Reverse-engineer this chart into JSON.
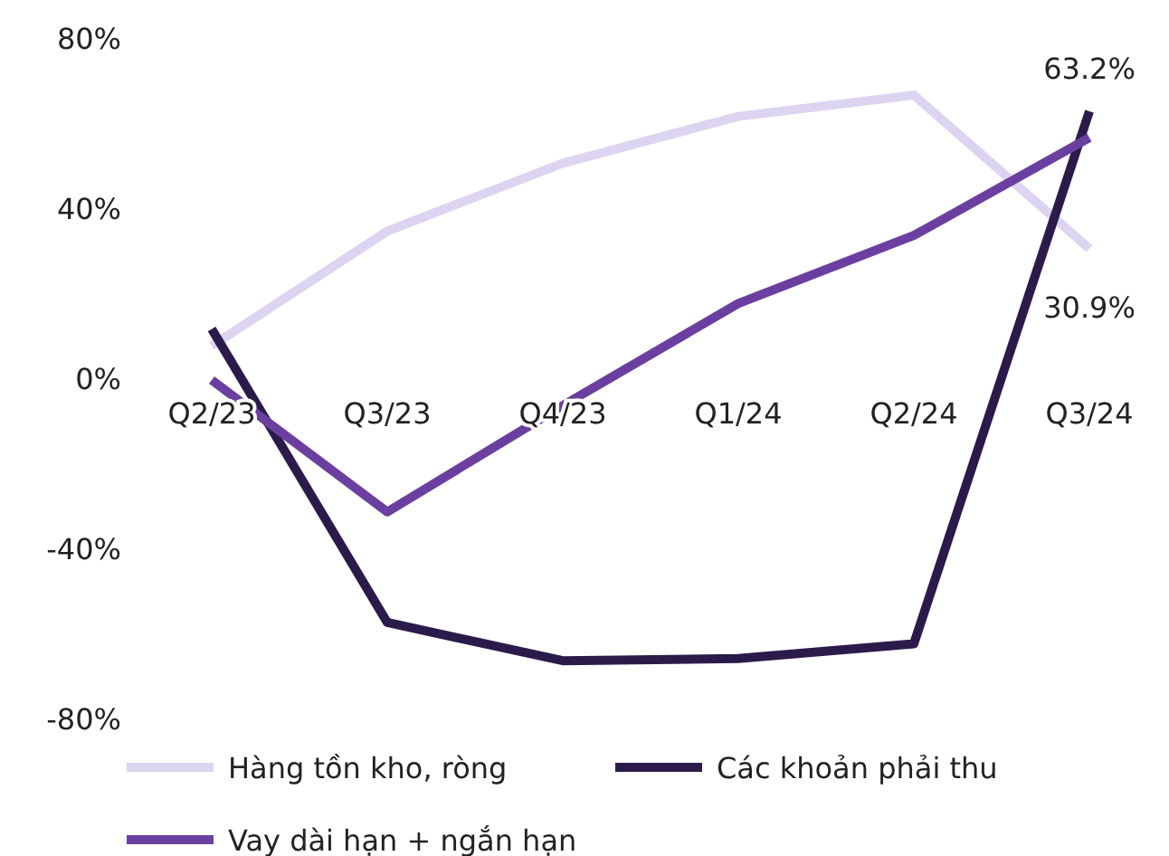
{
  "chart_data": {
    "type": "line",
    "categories": [
      "Q2/23",
      "Q3/23",
      "Q4/23",
      "Q1/24",
      "Q2/24",
      "Q3/24"
    ],
    "ylim": [
      -80,
      80
    ],
    "yticks": [
      {
        "value": -80,
        "label": "-80%"
      },
      {
        "value": -40,
        "label": "-40%"
      },
      {
        "value": 0,
        "label": "0%"
      },
      {
        "value": 40,
        "label": "40%"
      },
      {
        "value": 80,
        "label": "80%"
      }
    ],
    "legend": "bottom",
    "grid": false,
    "series": [
      {
        "name": "Hàng tồn kho, ròng",
        "color": "#dcd4f0",
        "values": [
          8,
          35,
          51,
          62,
          67,
          30.9
        ],
        "value_labels": [
          null,
          null,
          null,
          null,
          null,
          "30.9%"
        ]
      },
      {
        "name": "Các khoản phải thu",
        "color": "#2b1b4b",
        "values": [
          12,
          -57,
          -66,
          -65.5,
          -62,
          63.2
        ],
        "value_labels": [
          null,
          null,
          null,
          null,
          null,
          "63.2%"
        ]
      },
      {
        "name": "Vay dài hạn + ngắn hạn",
        "color": "#6b3fa0",
        "values": [
          0,
          -31,
          -6,
          18,
          34,
          57
        ]
      }
    ]
  }
}
